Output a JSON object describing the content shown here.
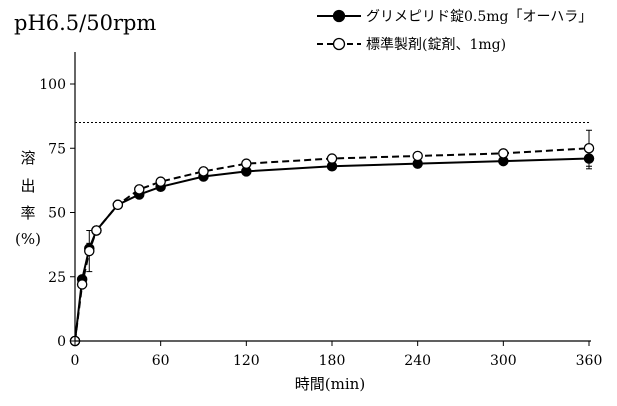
{
  "chart_data": {
    "type": "line",
    "title": "pH6.5/50rpm",
    "xlabel": "時間(min)",
    "ylabel_chars": [
      "溶",
      "出",
      "率",
      "(%)"
    ],
    "xlim": [
      0,
      360
    ],
    "ylim": [
      0,
      110
    ],
    "xticks": [
      0,
      60,
      120,
      180,
      240,
      300,
      360
    ],
    "yticks": [
      0,
      25,
      50,
      75,
      100
    ],
    "grid": false,
    "legend_position": "top-right",
    "reference_line": {
      "y": 85,
      "style": "dotted"
    },
    "series": [
      {
        "name": "グリメピリド錠0.5mg「オーハラ」",
        "marker": "filled-circle",
        "line_style": "solid",
        "color": "#000000",
        "x": [
          0,
          5,
          10,
          15,
          30,
          45,
          60,
          90,
          120,
          180,
          240,
          300,
          360
        ],
        "y": [
          0,
          24,
          36,
          43,
          53,
          57,
          60,
          64,
          66,
          68,
          69,
          70,
          71
        ],
        "error": [
          0,
          0,
          2,
          0,
          0,
          0,
          0,
          0,
          0,
          0,
          0,
          0,
          4
        ]
      },
      {
        "name": "標準製剤(錠剤、1mg)",
        "marker": "open-circle",
        "line_style": "dashed",
        "color": "#000000",
        "x": [
          0,
          5,
          10,
          15,
          30,
          45,
          60,
          90,
          120,
          180,
          240,
          300,
          360
        ],
        "y": [
          0,
          22,
          35,
          43,
          53,
          59,
          62,
          66,
          69,
          71,
          72,
          73,
          75
        ],
        "error": [
          0,
          0,
          8,
          0,
          0,
          0,
          0,
          0,
          0,
          0,
          0,
          0,
          7
        ]
      }
    ]
  }
}
